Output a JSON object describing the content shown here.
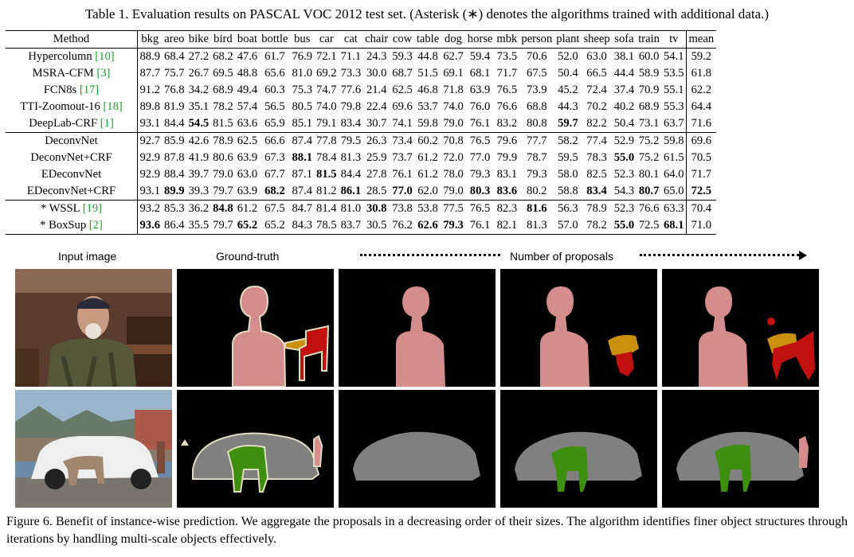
{
  "table_caption": "Table 1. Evaluation results on PASCAL VOC 2012 test set. (Asterisk (∗) denotes the algorithms trained with additional data.)",
  "columns": [
    "Method",
    "bkg",
    "areo",
    "bike",
    "bird",
    "boat",
    "bottle",
    "bus",
    "car",
    "cat",
    "chair",
    "cow",
    "table",
    "dog",
    "horse",
    "mbk",
    "person",
    "plant",
    "sheep",
    "sofa",
    "train",
    "tv",
    "mean"
  ],
  "rows": [
    {
      "method": "Hypercolumn",
      "ref": "[10]",
      "values": [
        "88.9",
        "68.4",
        "27.2",
        "68.2",
        "47.6",
        "61.7",
        "76.9",
        "72.1",
        "71.1",
        "24.3",
        "59.3",
        "44.8",
        "62.7",
        "59.4",
        "73.5",
        "70.6",
        "52.0",
        "63.0",
        "38.1",
        "60.0",
        "54.1",
        "59.2"
      ],
      "bold": []
    },
    {
      "method": "MSRA-CFM",
      "ref": "[3]",
      "values": [
        "87.7",
        "75.7",
        "26.7",
        "69.5",
        "48.8",
        "65.6",
        "81.0",
        "69.2",
        "73.3",
        "30.0",
        "68.7",
        "51.5",
        "69.1",
        "68.1",
        "71.7",
        "67.5",
        "50.4",
        "66.5",
        "44.4",
        "58.9",
        "53.5",
        "61.8"
      ],
      "bold": []
    },
    {
      "method": "FCN8s",
      "ref": "[17]",
      "values": [
        "91.2",
        "76.8",
        "34.2",
        "68.9",
        "49.4",
        "60.3",
        "75.3",
        "74.7",
        "77.6",
        "21.4",
        "62.5",
        "46.8",
        "71.8",
        "63.9",
        "76.5",
        "73.9",
        "45.2",
        "72.4",
        "37.4",
        "70.9",
        "55.1",
        "62.2"
      ],
      "bold": []
    },
    {
      "method": "TTI-Zoomout-16",
      "ref": "[18]",
      "values": [
        "89.8",
        "81.9",
        "35.1",
        "78.2",
        "57.4",
        "56.5",
        "80.5",
        "74.0",
        "79.8",
        "22.4",
        "69.6",
        "53.7",
        "74.0",
        "76.0",
        "76.6",
        "68.8",
        "44.3",
        "70.2",
        "40.2",
        "68.9",
        "55.3",
        "64.4"
      ],
      "bold": []
    },
    {
      "method": "DeepLab-CRF",
      "ref": "[1]",
      "values": [
        "93.1",
        "84.4",
        "54.5",
        "81.5",
        "63.6",
        "65.9",
        "85.1",
        "79.1",
        "83.4",
        "30.7",
        "74.1",
        "59.8",
        "79.0",
        "76.1",
        "83.2",
        "80.8",
        "59.7",
        "82.2",
        "50.4",
        "73.1",
        "63.7",
        "71.6"
      ],
      "bold": [
        2,
        16
      ]
    },
    {
      "method": "DeconvNet",
      "ref": "",
      "values": [
        "92.7",
        "85.9",
        "42.6",
        "78.9",
        "62.5",
        "66.6",
        "87.4",
        "77.8",
        "79.5",
        "26.3",
        "73.4",
        "60.2",
        "70.8",
        "76.5",
        "79.6",
        "77.7",
        "58.2",
        "77.4",
        "52.9",
        "75.2",
        "59.8",
        "69.6"
      ],
      "bold": []
    },
    {
      "method": "DeconvNet+CRF",
      "ref": "",
      "values": [
        "92.9",
        "87.8",
        "41.9",
        "80.6",
        "63.9",
        "67.3",
        "88.1",
        "78.4",
        "81.3",
        "25.9",
        "73.7",
        "61.2",
        "72.0",
        "77.0",
        "79.9",
        "78.7",
        "59.5",
        "78.3",
        "55.0",
        "75.2",
        "61.5",
        "70.5"
      ],
      "bold": [
        6,
        18
      ]
    },
    {
      "method": "EDeconvNet",
      "ref": "",
      "values": [
        "92.9",
        "88.4",
        "39.7",
        "79.0",
        "63.0",
        "67.7",
        "87.1",
        "81.5",
        "84.4",
        "27.8",
        "76.1",
        "61.2",
        "78.0",
        "79.3",
        "83.1",
        "79.3",
        "58.0",
        "82.5",
        "52.3",
        "80.1",
        "64.0",
        "71.7"
      ],
      "bold": [
        7
      ]
    },
    {
      "method": "EDeconvNet+CRF",
      "ref": "",
      "values": [
        "93.1",
        "89.9",
        "39.3",
        "79.7",
        "63.9",
        "68.2",
        "87.4",
        "81.2",
        "86.1",
        "28.5",
        "77.0",
        "62.0",
        "79.0",
        "80.3",
        "83.6",
        "80.2",
        "58.8",
        "83.4",
        "54.3",
        "80.7",
        "65.0",
        "72.5"
      ],
      "bold": [
        1,
        5,
        8,
        10,
        13,
        14,
        17,
        19,
        21
      ]
    },
    {
      "method": "* WSSL",
      "ref": "[19]",
      "values": [
        "93.2",
        "85.3",
        "36.2",
        "84.8",
        "61.2",
        "67.5",
        "84.7",
        "81.4",
        "81.0",
        "30.8",
        "73.8",
        "53.8",
        "77.5",
        "76.5",
        "82.3",
        "81.6",
        "56.3",
        "78.9",
        "52.3",
        "76.6",
        "63.3",
        "70.4"
      ],
      "bold": [
        3,
        9,
        15
      ]
    },
    {
      "method": "* BoxSup",
      "ref": "[2]",
      "values": [
        "93.6",
        "86.4",
        "35.5",
        "79.7",
        "65.2",
        "65.2",
        "84.3",
        "78.5",
        "83.7",
        "30.5",
        "76.2",
        "62.6",
        "79.3",
        "76.1",
        "82.1",
        "81.3",
        "57.0",
        "78.2",
        "55.0",
        "72.5",
        "68.1",
        "71.0"
      ],
      "bold": [
        0,
        4,
        11,
        12,
        18,
        20
      ]
    }
  ],
  "figure_headers": {
    "input": "Input image",
    "gt": "Ground-truth",
    "proposals": "Number of proposals"
  },
  "colors": {
    "person": "#d48c8c",
    "chair": "#c01010",
    "table": "#c8900c",
    "cow": "#3e8e10",
    "car": "#808080",
    "background": "#000000",
    "boundary": "#e0dcc0",
    "citation": "#1f9d2f"
  },
  "figure_caption": "Figure 6.   Benefit of instance-wise prediction. We aggregate the proposals in a decreasing order of their sizes. The algorithm identifies finer object structures through iterations by handling multi-scale objects effectively."
}
